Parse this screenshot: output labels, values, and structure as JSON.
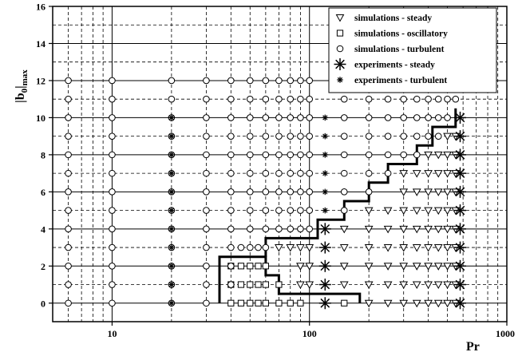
{
  "chart_data": {
    "type": "scatter",
    "title": "",
    "xlabel": "Pr",
    "ylabel": "|b0|max",
    "xscale": "log",
    "xlim": [
      5,
      1000
    ],
    "ylim": [
      -1,
      16
    ],
    "yticks": [
      0,
      2,
      4,
      6,
      8,
      10,
      12,
      14,
      16
    ],
    "xticks": [
      10,
      100,
      1000
    ],
    "xtick_labels": [
      "10",
      "100",
      "1000"
    ],
    "grid": "dashed",
    "legend_position": "top-right",
    "series": [
      {
        "name": "simulations - steady",
        "marker": "triangle-down",
        "points": [
          [
            200,
            0
          ],
          [
            250,
            0
          ],
          [
            300,
            0
          ],
          [
            350,
            0
          ],
          [
            400,
            0
          ],
          [
            450,
            0
          ],
          [
            500,
            0
          ],
          [
            550,
            0
          ],
          [
            90,
            1
          ],
          [
            100,
            1
          ],
          [
            150,
            1
          ],
          [
            200,
            1
          ],
          [
            250,
            1
          ],
          [
            300,
            1
          ],
          [
            350,
            1
          ],
          [
            400,
            1
          ],
          [
            450,
            1
          ],
          [
            500,
            1
          ],
          [
            550,
            1
          ],
          [
            90,
            2
          ],
          [
            100,
            2
          ],
          [
            150,
            2
          ],
          [
            200,
            2
          ],
          [
            250,
            2
          ],
          [
            300,
            2
          ],
          [
            350,
            2
          ],
          [
            400,
            2
          ],
          [
            450,
            2
          ],
          [
            500,
            2
          ],
          [
            550,
            2
          ],
          [
            70,
            3
          ],
          [
            80,
            3
          ],
          [
            90,
            3
          ],
          [
            100,
            3
          ],
          [
            150,
            3
          ],
          [
            200,
            3
          ],
          [
            250,
            3
          ],
          [
            300,
            3
          ],
          [
            350,
            3
          ],
          [
            400,
            3
          ],
          [
            450,
            3
          ],
          [
            500,
            3
          ],
          [
            550,
            3
          ],
          [
            150,
            4
          ],
          [
            200,
            4
          ],
          [
            250,
            4
          ],
          [
            300,
            4
          ],
          [
            350,
            4
          ],
          [
            400,
            4
          ],
          [
            450,
            4
          ],
          [
            500,
            4
          ],
          [
            550,
            4
          ],
          [
            200,
            5
          ],
          [
            250,
            5
          ],
          [
            300,
            5
          ],
          [
            350,
            5
          ],
          [
            400,
            5
          ],
          [
            450,
            5
          ],
          [
            500,
            5
          ],
          [
            550,
            5
          ],
          [
            300,
            6
          ],
          [
            350,
            6
          ],
          [
            400,
            6
          ],
          [
            450,
            6
          ],
          [
            500,
            6
          ],
          [
            550,
            6
          ],
          [
            300,
            7
          ],
          [
            350,
            7
          ],
          [
            400,
            7
          ],
          [
            450,
            7
          ],
          [
            500,
            7
          ],
          [
            550,
            7
          ],
          [
            400,
            8
          ],
          [
            450,
            8
          ],
          [
            500,
            8
          ],
          [
            550,
            8
          ],
          [
            500,
            9
          ],
          [
            550,
            9
          ]
        ]
      },
      {
        "name": "simulations - oscillatory",
        "marker": "square",
        "points": [
          [
            40,
            0
          ],
          [
            45,
            0
          ],
          [
            50,
            0
          ],
          [
            55,
            0
          ],
          [
            60,
            0
          ],
          [
            70,
            0
          ],
          [
            80,
            0
          ],
          [
            90,
            0
          ],
          [
            150,
            0
          ],
          [
            40,
            1
          ],
          [
            45,
            1
          ],
          [
            50,
            1
          ],
          [
            55,
            1
          ],
          [
            60,
            1
          ],
          [
            70,
            1
          ],
          [
            40,
            2
          ],
          [
            45,
            2
          ],
          [
            50,
            2
          ],
          [
            55,
            2
          ],
          [
            60,
            2
          ]
        ]
      },
      {
        "name": "simulations - turbulent",
        "marker": "circle",
        "points": [
          [
            6,
            0
          ],
          [
            10,
            0
          ],
          [
            20,
            0
          ],
          [
            30,
            0
          ],
          [
            6,
            1
          ],
          [
            10,
            1
          ],
          [
            20,
            1
          ],
          [
            30,
            1
          ],
          [
            40,
            1
          ],
          [
            6,
            2
          ],
          [
            10,
            2
          ],
          [
            20,
            2
          ],
          [
            30,
            2
          ],
          [
            40,
            2
          ],
          [
            6,
            3
          ],
          [
            10,
            3
          ],
          [
            20,
            3
          ],
          [
            30,
            3
          ],
          [
            40,
            3
          ],
          [
            45,
            3
          ],
          [
            50,
            3
          ],
          [
            55,
            3
          ],
          [
            60,
            3
          ],
          [
            6,
            4
          ],
          [
            10,
            4
          ],
          [
            20,
            4
          ],
          [
            30,
            4
          ],
          [
            40,
            4
          ],
          [
            50,
            4
          ],
          [
            60,
            4
          ],
          [
            70,
            4
          ],
          [
            80,
            4
          ],
          [
            90,
            4
          ],
          [
            100,
            4
          ],
          [
            6,
            5
          ],
          [
            10,
            5
          ],
          [
            20,
            5
          ],
          [
            30,
            5
          ],
          [
            40,
            5
          ],
          [
            50,
            5
          ],
          [
            60,
            5
          ],
          [
            70,
            5
          ],
          [
            80,
            5
          ],
          [
            90,
            5
          ],
          [
            100,
            5
          ],
          [
            150,
            5
          ],
          [
            6,
            6
          ],
          [
            10,
            6
          ],
          [
            20,
            6
          ],
          [
            30,
            6
          ],
          [
            40,
            6
          ],
          [
            50,
            6
          ],
          [
            60,
            6
          ],
          [
            70,
            6
          ],
          [
            80,
            6
          ],
          [
            90,
            6
          ],
          [
            100,
            6
          ],
          [
            150,
            6
          ],
          [
            200,
            6
          ],
          [
            6,
            7
          ],
          [
            10,
            7
          ],
          [
            20,
            7
          ],
          [
            30,
            7
          ],
          [
            40,
            7
          ],
          [
            50,
            7
          ],
          [
            60,
            7
          ],
          [
            70,
            7
          ],
          [
            80,
            7
          ],
          [
            90,
            7
          ],
          [
            100,
            7
          ],
          [
            150,
            7
          ],
          [
            200,
            7
          ],
          [
            250,
            7
          ],
          [
            6,
            8
          ],
          [
            10,
            8
          ],
          [
            20,
            8
          ],
          [
            30,
            8
          ],
          [
            40,
            8
          ],
          [
            50,
            8
          ],
          [
            60,
            8
          ],
          [
            70,
            8
          ],
          [
            80,
            8
          ],
          [
            90,
            8
          ],
          [
            100,
            8
          ],
          [
            150,
            8
          ],
          [
            200,
            8
          ],
          [
            250,
            8
          ],
          [
            300,
            8
          ],
          [
            350,
            8
          ],
          [
            6,
            9
          ],
          [
            10,
            9
          ],
          [
            20,
            9
          ],
          [
            30,
            9
          ],
          [
            40,
            9
          ],
          [
            50,
            9
          ],
          [
            60,
            9
          ],
          [
            70,
            9
          ],
          [
            80,
            9
          ],
          [
            90,
            9
          ],
          [
            100,
            9
          ],
          [
            150,
            9
          ],
          [
            200,
            9
          ],
          [
            250,
            9
          ],
          [
            300,
            9
          ],
          [
            350,
            9
          ],
          [
            400,
            9
          ],
          [
            450,
            9
          ],
          [
            6,
            10
          ],
          [
            10,
            10
          ],
          [
            20,
            10
          ],
          [
            30,
            10
          ],
          [
            40,
            10
          ],
          [
            50,
            10
          ],
          [
            60,
            10
          ],
          [
            70,
            10
          ],
          [
            80,
            10
          ],
          [
            90,
            10
          ],
          [
            100,
            10
          ],
          [
            150,
            10
          ],
          [
            200,
            10
          ],
          [
            250,
            10
          ],
          [
            300,
            10
          ],
          [
            350,
            10
          ],
          [
            400,
            10
          ],
          [
            450,
            10
          ],
          [
            500,
            10
          ],
          [
            6,
            11
          ],
          [
            10,
            11
          ],
          [
            20,
            11
          ],
          [
            30,
            11
          ],
          [
            40,
            11
          ],
          [
            50,
            11
          ],
          [
            60,
            11
          ],
          [
            70,
            11
          ],
          [
            80,
            11
          ],
          [
            90,
            11
          ],
          [
            100,
            11
          ],
          [
            150,
            11
          ],
          [
            200,
            11
          ],
          [
            250,
            11
          ],
          [
            300,
            11
          ],
          [
            350,
            11
          ],
          [
            400,
            11
          ],
          [
            450,
            11
          ],
          [
            500,
            11
          ],
          [
            550,
            11
          ],
          [
            6,
            12
          ],
          [
            10,
            12
          ],
          [
            20,
            12
          ],
          [
            30,
            12
          ],
          [
            40,
            12
          ],
          [
            50,
            12
          ],
          [
            60,
            12
          ],
          [
            70,
            12
          ],
          [
            80,
            12
          ],
          [
            90,
            12
          ],
          [
            100,
            12
          ]
        ]
      },
      {
        "name": "experiments  - steady",
        "marker": "large-star",
        "points": [
          [
            120,
            0
          ],
          [
            120,
            1
          ],
          [
            120,
            2
          ],
          [
            120,
            3
          ],
          [
            120,
            4
          ],
          [
            580,
            0
          ],
          [
            580,
            1
          ],
          [
            580,
            2
          ],
          [
            580,
            3
          ],
          [
            580,
            4
          ],
          [
            580,
            5
          ],
          [
            580,
            6
          ],
          [
            580,
            7
          ],
          [
            580,
            8
          ],
          [
            580,
            9
          ],
          [
            580,
            10
          ]
        ]
      },
      {
        "name": "experiments  - turbulent",
        "marker": "small-star",
        "points": [
          [
            20,
            0
          ],
          [
            20,
            1
          ],
          [
            20,
            2
          ],
          [
            20,
            3
          ],
          [
            20,
            4
          ],
          [
            20,
            5
          ],
          [
            20,
            6
          ],
          [
            20,
            7
          ],
          [
            20,
            8
          ],
          [
            20,
            9
          ],
          [
            20,
            10
          ],
          [
            120,
            5
          ],
          [
            120,
            6
          ],
          [
            120,
            7
          ],
          [
            120,
            8
          ],
          [
            120,
            9
          ],
          [
            120,
            10
          ]
        ]
      }
    ],
    "boundary": [
      [
        35,
        0
      ],
      [
        35,
        2.5
      ],
      [
        60,
        2.5
      ],
      [
        60,
        1.5
      ],
      [
        70,
        1.5
      ],
      [
        70,
        0.5
      ],
      [
        180,
        0.5
      ],
      [
        180,
        0
      ],
      [
        60,
        2.5
      ],
      [
        60,
        3.5
      ],
      [
        110,
        3.5
      ],
      [
        110,
        4.5
      ],
      [
        150,
        4.5
      ],
      [
        150,
        5.5
      ],
      [
        200,
        5.5
      ],
      [
        200,
        6.5
      ],
      [
        250,
        6.5
      ],
      [
        250,
        7.5
      ],
      [
        350,
        7.5
      ],
      [
        350,
        8.5
      ],
      [
        420,
        8.5
      ],
      [
        420,
        9.5
      ],
      [
        550,
        9.5
      ],
      [
        550,
        10.5
      ]
    ]
  }
}
